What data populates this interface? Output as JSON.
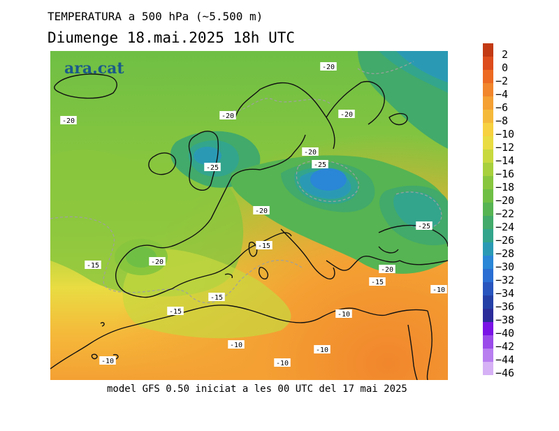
{
  "header": {
    "title": "TEMPERATURA a 500 hPa (~5.500 m)",
    "subtitle": "Diumenge  18.mai.2025 18h UTC"
  },
  "footer": {
    "text": "model GFS 0.50 iniciat a les 00 UTC del 17 mai 2025"
  },
  "logo": {
    "text": "ara.cat"
  },
  "map_labels": [
    {
      "text": "-20",
      "near": "north-atlantic-north"
    },
    {
      "text": "-20",
      "near": "atlantic-west"
    },
    {
      "text": "-20",
      "near": "north-sea"
    },
    {
      "text": "-20",
      "near": "scandinavia"
    },
    {
      "text": "-20",
      "near": "baltic"
    },
    {
      "text": "-25",
      "near": "british-isles"
    },
    {
      "text": "-25",
      "near": "poland"
    },
    {
      "text": "-20",
      "near": "central-europe"
    },
    {
      "text": "-15",
      "near": "alps"
    },
    {
      "text": "-25",
      "near": "black-sea-east"
    },
    {
      "text": "-15",
      "near": "atlantic-iberia"
    },
    {
      "text": "-20",
      "near": "iberia"
    },
    {
      "text": "-20",
      "near": "turkey"
    },
    {
      "text": "-15",
      "near": "aegean"
    },
    {
      "text": "-10",
      "near": "levant"
    },
    {
      "text": "-15",
      "near": "algeria"
    },
    {
      "text": "-15",
      "near": "morocco"
    },
    {
      "text": "-10",
      "near": "libya"
    },
    {
      "text": "-10",
      "near": "sahara-west"
    },
    {
      "text": "-10",
      "near": "egypt"
    },
    {
      "text": "-10",
      "near": "sahara-central"
    },
    {
      "text": "-10",
      "near": "canary"
    }
  ],
  "colorbar": {
    "labels": [
      "2",
      "0",
      "−2",
      "−4",
      "−6",
      "−8",
      "−10",
      "−12",
      "−14",
      "−16",
      "−18",
      "−20",
      "−22",
      "−24",
      "−26",
      "−28",
      "−30",
      "−32",
      "−34",
      "−36",
      "−38",
      "−40",
      "−42",
      "−44",
      "−46"
    ],
    "colors": [
      "#c23a14",
      "#dd4c1c",
      "#ec6a22",
      "#f1862c",
      "#f4a033",
      "#f5b93a",
      "#f7d13f",
      "#e9dc42",
      "#c8d93e",
      "#a7d03c",
      "#88c63e",
      "#6fbf45",
      "#56b452",
      "#42aa6a",
      "#33a58c",
      "#2a9ab4",
      "#2a86d6",
      "#2a6ed3",
      "#2855be",
      "#2440a6",
      "#2b2c9a",
      "#7a13e6",
      "#9a4bea",
      "#b87ef0",
      "#d6b1f5"
    ]
  },
  "colors": {
    "coast": "#111111",
    "contour": "#a0a0a0"
  }
}
